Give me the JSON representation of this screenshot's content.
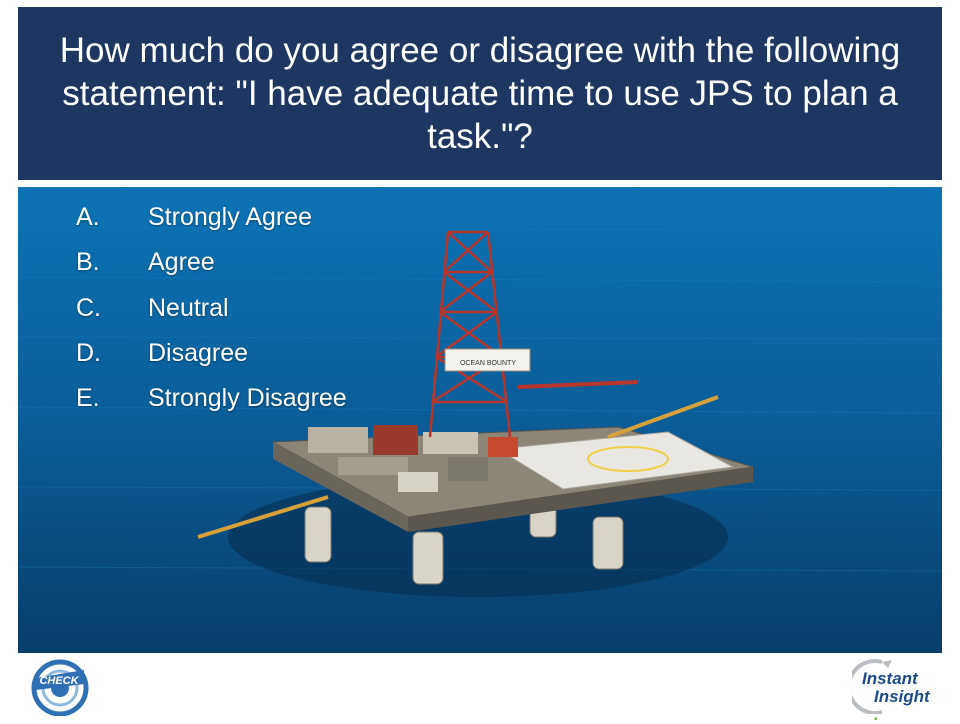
{
  "slide": {
    "title": "How much do you agree or disagree with the following statement: \"I have adequate time to use JPS to plan a task.\"?",
    "options": [
      {
        "letter": "A.",
        "label": "Strongly Agree"
      },
      {
        "letter": "B.",
        "label": "Agree"
      },
      {
        "letter": "C.",
        "label": "Neutral"
      },
      {
        "letter": "D.",
        "label": "Disagree"
      },
      {
        "letter": "E.",
        "label": "Strongly Disagree"
      }
    ],
    "platform_sign": "OCEAN BOUNTY"
  },
  "logos": {
    "left": {
      "text": "CHECK",
      "icon": "check-logo-icon"
    },
    "right": {
      "line1": "Instant",
      "line2": "Insight",
      "dot": ".",
      "icon": "instant-insight-logo-icon"
    }
  },
  "colors": {
    "title_bar": "#1f3562",
    "title_text": "#ffffff",
    "ocean": "#0c5c95",
    "logo_blue": "#1f4a8a",
    "logo_green": "#7bb443"
  }
}
